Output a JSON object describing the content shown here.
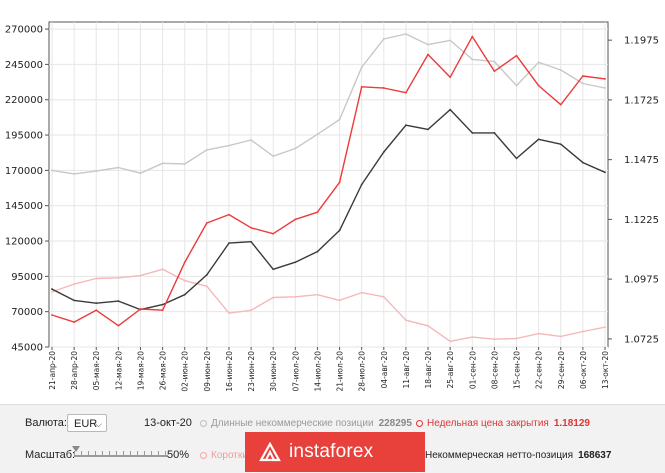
{
  "chart_data": {
    "type": "line",
    "x": [
      "21-апр-20",
      "28-апр-20",
      "05-мая-20",
      "12-мая-20",
      "19-мая-20",
      "26-мая-20",
      "02-июн-20",
      "09-июн-20",
      "16-июн-20",
      "23-июн-20",
      "30-июн-20",
      "07-июл-20",
      "14-июл-20",
      "21-июл-20",
      "28-июл-20",
      "04-авг-20",
      "11-авг-20",
      "18-авг-20",
      "25-авг-20",
      "01-сен-20",
      "08-сен-20",
      "15-сен-20",
      "22-сен-20",
      "29-сен-20",
      "06-окт-20",
      "13-окт-20"
    ],
    "x_tick_labels": [
      "21-апр-20",
      "28-апр-20",
      "05-мая-20",
      "12-мая-20",
      "19-мая-20",
      "26-мая-20",
      "02-июн-20",
      "09-июн-20",
      "16-июн-20",
      "23-июн-20",
      "30-июн-20",
      "07-июл-20",
      "14-июл-20",
      "21-июл-20",
      "28-июл-20",
      "04-авг-20",
      "11-авг-20",
      "18-авг-20",
      "25-авг-20",
      "01-сен-20",
      "08-сен-20",
      "15-сен-20",
      "22-сен-20",
      "29-сен-20",
      "06-окт-20",
      "13-окт-20"
    ],
    "y_left": {
      "ticks": [
        45000,
        70000,
        95000,
        120000,
        145000,
        170000,
        195000,
        220000,
        245000,
        270000
      ],
      "tick_labels": [
        "45000",
        "70000",
        "95000",
        "120000",
        "145000",
        "170000",
        "195000",
        "220000",
        "245000",
        "270000"
      ],
      "range": [
        45000,
        275000
      ]
    },
    "y_right": {
      "ticks": [
        1.0725,
        1.0975,
        1.1225,
        1.1475,
        1.1725,
        1.1975
      ],
      "tick_labels": [
        "1.0725",
        "1.0975",
        "1.1225",
        "1.1475",
        "1.1725",
        "1.1975"
      ],
      "range": [
        1.0691,
        1.2051
      ]
    },
    "grid": true,
    "series": [
      {
        "name": "Длинные некоммерческие позиции",
        "axis": "left",
        "color": "#c8c8c8",
        "values": [
          170000,
          167500,
          169500,
          172000,
          168000,
          175000,
          174500,
          184500,
          187500,
          191500,
          180000,
          185500,
          195500,
          206000,
          243000,
          263000,
          266500,
          259000,
          262000,
          248500,
          247000,
          230000,
          246500,
          241000,
          231500,
          228295
        ]
      },
      {
        "name": "Короткие некоммерческие позиции",
        "axis": "left",
        "color": "#f4b8b8",
        "values": [
          84000,
          89500,
          93500,
          94000,
          95500,
          100000,
          92000,
          88000,
          69000,
          71000,
          80000,
          80500,
          82000,
          78000,
          83500,
          80500,
          64000,
          60000,
          49000,
          52000,
          50500,
          51000,
          54500,
          52500,
          56000,
          59000
        ]
      },
      {
        "name": "Некоммерческая нетто-позиция",
        "axis": "left",
        "color": "#3a3a3a",
        "values": [
          86000,
          78000,
          76000,
          77500,
          71500,
          75000,
          82000,
          96000,
          118500,
          119500,
          100000,
          105000,
          112500,
          127500,
          160000,
          183000,
          202000,
          199000,
          213000,
          196500,
          196500,
          178500,
          192000,
          188500,
          175500,
          168637
        ]
      },
      {
        "name": "Недельная цена закрытия",
        "axis": "right",
        "color": "#ee3a3a",
        "values": [
          1.0825,
          1.0795,
          1.0845,
          1.078,
          1.085,
          1.0845,
          1.1045,
          1.121,
          1.1245,
          1.119,
          1.1165,
          1.1225,
          1.1255,
          1.138,
          1.178,
          1.1775,
          1.1755,
          1.1915,
          1.182,
          1.199,
          1.1845,
          1.191,
          1.1785,
          1.1705,
          1.1825,
          1.18129
        ]
      }
    ]
  },
  "panel": {
    "currency_label": "Валюта:",
    "currency_value": "EUR",
    "date": "13-окт-20",
    "scale_label": "Масштаб:",
    "scale_value": "50%",
    "legend": {
      "long": {
        "label": "Длинные некоммерческие позиции",
        "value": "228295",
        "color": "#c0c0c0"
      },
      "close": {
        "label": "Недельная цена закрытия",
        "value": "1.18129",
        "color": "#ee3a3a"
      },
      "short": {
        "label": "Коротки",
        "color": "#f4a6a6"
      },
      "net": {
        "label": "Некоммерческая нетто-позиция",
        "value": "168637",
        "color": "#3a3a3a"
      }
    }
  },
  "watermark": {
    "text": "instaforex"
  }
}
